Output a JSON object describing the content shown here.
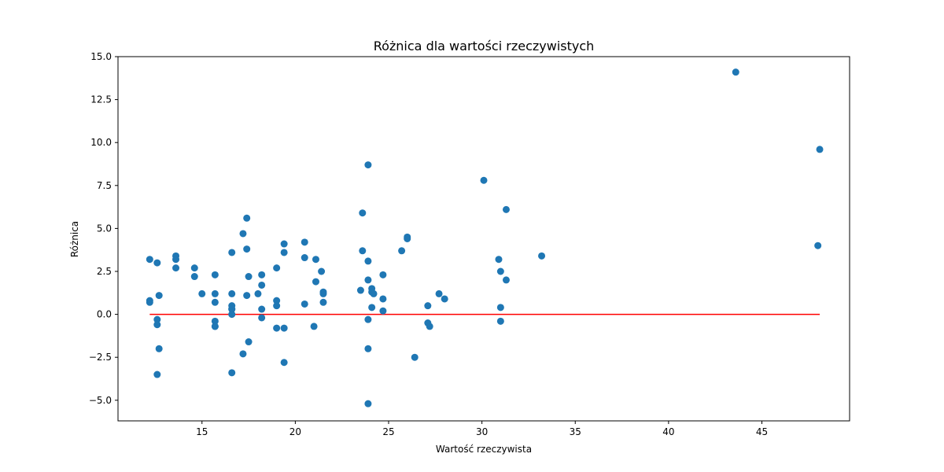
{
  "chart_data": {
    "type": "scatter",
    "title": "Różnica dla wartości rzeczywistych",
    "xlabel": "Wartość rzeczywista",
    "ylabel": "Różnica",
    "xlim": [
      10.5,
      49.7
    ],
    "ylim": [
      -6.2,
      15.0
    ],
    "x_ticks": [
      15,
      20,
      25,
      30,
      35,
      40,
      45
    ],
    "y_ticks": [
      -5.0,
      -2.5,
      0.0,
      2.5,
      5.0,
      7.5,
      10.0,
      12.5,
      15.0
    ],
    "x_tick_labels": [
      "15",
      "20",
      "25",
      "30",
      "35",
      "40",
      "45"
    ],
    "y_tick_labels": [
      "−5.0",
      "−2.5",
      "0.0",
      "2.5",
      "5.0",
      "7.5",
      "10.0",
      "12.5",
      "15.0"
    ],
    "grid": false,
    "colors": {
      "points": "#1f77b4",
      "reference_line": "#ff0000"
    },
    "reference_line": {
      "x": [
        12.2,
        48.1
      ],
      "y": [
        0.0,
        0.0
      ]
    },
    "series": [
      {
        "x": [
          12.2,
          12.2,
          12.2,
          12.6,
          12.6,
          12.6,
          12.6,
          12.7,
          12.7,
          13.6,
          13.6,
          13.6,
          14.6,
          14.6,
          15.0,
          15.7,
          15.7,
          15.7,
          15.7,
          15.7,
          15.7,
          16.6,
          16.6,
          16.6,
          16.6,
          16.6,
          16.6,
          16.6,
          17.2,
          17.2,
          17.4,
          17.4,
          17.4,
          17.5,
          17.5,
          18.0,
          18.2,
          18.2,
          18.2,
          18.2,
          19.0,
          19.0,
          19.0,
          19.0,
          19.4,
          19.4,
          19.4,
          19.4,
          20.5,
          20.5,
          20.5,
          21.0,
          21.1,
          21.1,
          21.4,
          21.5,
          21.5,
          21.5,
          23.5,
          23.6,
          23.6,
          23.9,
          23.9,
          23.9,
          23.9,
          23.9,
          23.9,
          24.1,
          24.1,
          24.1,
          24.2,
          24.7,
          24.7,
          24.7,
          25.7,
          26.0,
          26.0,
          26.4,
          27.1,
          27.1,
          27.2,
          27.7,
          28.0,
          30.1,
          30.9,
          31.0,
          31.0,
          31.0,
          31.3,
          31.3,
          33.2,
          43.6,
          48.0,
          48.1
        ],
        "y": [
          3.2,
          0.8,
          0.7,
          3.0,
          -0.3,
          -0.6,
          -3.5,
          1.1,
          -2.0,
          3.4,
          3.2,
          2.7,
          2.7,
          2.2,
          1.2,
          2.3,
          1.2,
          0.7,
          -0.4,
          -0.7,
          -0.7,
          3.6,
          1.2,
          0.5,
          0.3,
          0.3,
          0.0,
          -3.4,
          4.7,
          -2.3,
          5.6,
          3.8,
          1.1,
          2.2,
          -1.6,
          1.2,
          2.3,
          1.7,
          0.3,
          -0.2,
          2.7,
          0.8,
          0.5,
          -0.8,
          4.1,
          3.6,
          -0.8,
          -2.8,
          4.2,
          3.3,
          0.6,
          -0.7,
          3.2,
          1.9,
          2.5,
          1.3,
          1.2,
          0.7,
          1.4,
          5.9,
          3.7,
          8.7,
          3.1,
          2.0,
          -0.3,
          -2.0,
          -5.2,
          1.5,
          1.3,
          0.4,
          1.2,
          2.3,
          0.9,
          0.2,
          3.7,
          4.5,
          4.4,
          -2.5,
          0.5,
          -0.5,
          -0.7,
          1.2,
          0.9,
          7.8,
          3.2,
          2.5,
          0.4,
          -0.4,
          6.1,
          2.0,
          3.4,
          14.1,
          4.0,
          9.6
        ]
      }
    ]
  }
}
